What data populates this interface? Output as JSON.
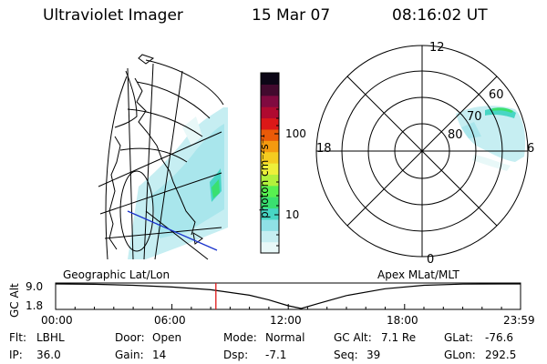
{
  "header": {
    "instrument": "Ultraviolet Imager",
    "date": "15 Mar 07",
    "time": "08:16:02 UT"
  },
  "panels": {
    "left_label": "Geographic Lat/Lon",
    "right_label": "Apex MLat/MLT"
  },
  "colorbar": {
    "unit_label": "photon cm⁻²s⁻¹",
    "ticks": [
      {
        "value": 100,
        "label": "100"
      },
      {
        "value": 10,
        "label": "10"
      }
    ],
    "scale": "log",
    "colors": [
      "#e8f8f8",
      "#c6eef2",
      "#8fe0e6",
      "#48d6c4",
      "#3ae070",
      "#58f050",
      "#b2f03c",
      "#eef03a",
      "#f4cc20",
      "#f49a10",
      "#ea5a08",
      "#dc1818",
      "#b00a30",
      "#800a40",
      "#420a2e",
      "#0c0616"
    ]
  },
  "polar": {
    "mlt_labels": [
      "12",
      "18",
      "6",
      "0"
    ],
    "mlat_labels": [
      "60",
      "70",
      "80"
    ]
  },
  "chart_data": {
    "type": "line",
    "title": "",
    "xlabel": "",
    "ylabel": "GC Alt",
    "x_ticks": [
      "00:00",
      "06:00",
      "12:00",
      "18:00",
      "23:59"
    ],
    "y_ticks": [
      "9.0",
      "1.8"
    ],
    "ylim": [
      1.8,
      9.0
    ],
    "series": [
      {
        "x": [
          "00:00",
          "02:00",
          "04:00",
          "06:00",
          "08:00",
          "10:00",
          "11:00",
          "12:00",
          "12:40",
          "13:30",
          "15:00",
          "17:00",
          "19:00",
          "21:00",
          "23:00",
          "23:59"
        ],
        "values": [
          9.0,
          8.9,
          8.6,
          8.1,
          7.3,
          5.7,
          4.3,
          2.6,
          1.8,
          3.2,
          5.6,
          7.6,
          8.6,
          8.95,
          9.0,
          9.0
        ]
      }
    ],
    "current_time_marker": "08:16"
  },
  "footer": [
    {
      "key": "Flt:",
      "value": "LBHL"
    },
    {
      "key": "IP:",
      "value": "36.0"
    },
    {
      "key": "Door:",
      "value": "Open"
    },
    {
      "key": "Gain:",
      "value": "14"
    },
    {
      "key": "Mode:",
      "value": "Normal"
    },
    {
      "key": "Dsp:",
      "value": "-7.1"
    },
    {
      "key": "GC Alt:",
      "value": "7.1 Re"
    },
    {
      "key": "Seq:",
      "value": "39"
    },
    {
      "key": "GLat:",
      "value": "-76.6"
    },
    {
      "key": "GLon:",
      "value": "292.5"
    }
  ]
}
